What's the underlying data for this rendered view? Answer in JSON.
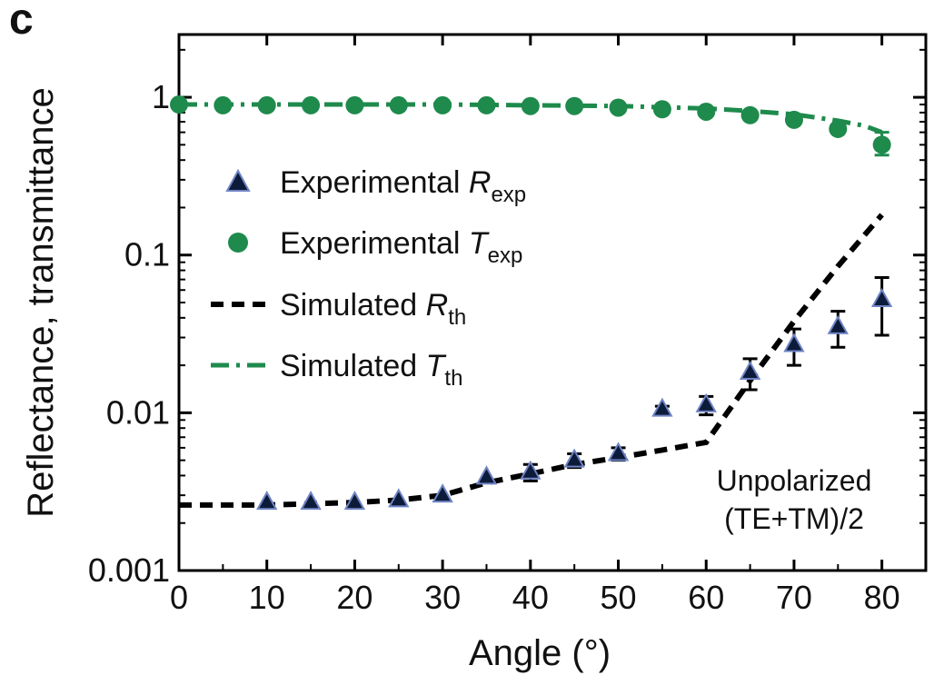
{
  "panel_label": "c",
  "colors": {
    "transmittance": "#1e8a4c",
    "transmittance_marker": "#1e8a4c",
    "reflectance_fill": "#0d1b3a",
    "reflectance_edge": "#6f84c4",
    "simulated_R": "#000000",
    "simulated_T": "#1e8a4c"
  },
  "legend": [
    {
      "label": "Experimental ",
      "italic": "R",
      "sub": "exp",
      "symbol": "triangle-icon"
    },
    {
      "label": "Experimental ",
      "italic": "T",
      "sub": "exp",
      "symbol": "circle-icon"
    },
    {
      "label": "Simulated ",
      "italic": "R",
      "sub": "th",
      "symbol": "dashed-line-icon"
    },
    {
      "label": "Simulated ",
      "italic": "T",
      "sub": "th",
      "symbol": "dash-dot-line-icon"
    }
  ],
  "annotation": [
    "Unpolarized",
    "(TE+TM)/2"
  ],
  "chart_data": {
    "type": "scatter",
    "title": "",
    "xlabel": "Angle (°)",
    "ylabel": "Reflectance, transmittance",
    "xlim": [
      0,
      85
    ],
    "ylim": [
      0.001,
      2.5
    ],
    "yscale": "log",
    "xticks": [
      0,
      10,
      20,
      30,
      40,
      50,
      60,
      70,
      80
    ],
    "xtick_labels": [
      "0",
      "10",
      "20",
      "30",
      "40",
      "50",
      "60",
      "70",
      "80"
    ],
    "yticks": [
      0.001,
      0.01,
      0.1,
      1
    ],
    "ytick_labels": [
      "0.001",
      "0.01",
      "0.1",
      "1"
    ],
    "grid": false,
    "legend_position": "left",
    "series": [
      {
        "name": "Experimental Rexp",
        "kind": "marker-triangle",
        "x": [
          10,
          15,
          20,
          25,
          30,
          35,
          40,
          45,
          50,
          55,
          60,
          65,
          70,
          75,
          80
        ],
        "y": [
          0.0027,
          0.0027,
          0.0027,
          0.0028,
          0.003,
          0.0039,
          0.0042,
          0.005,
          0.0055,
          0.0105,
          0.0112,
          0.018,
          0.027,
          0.035,
          0.052
        ],
        "err_low": [
          0,
          0,
          0,
          0,
          0,
          0,
          0.0005,
          0.0005,
          0.0005,
          0.0005,
          0.0015,
          0.004,
          0.007,
          0.009,
          0.021
        ],
        "err_high": [
          0,
          0,
          0,
          0,
          0,
          0,
          0.0005,
          0.0005,
          0.0005,
          0.0005,
          0.0015,
          0.004,
          0.007,
          0.009,
          0.02
        ]
      },
      {
        "name": "Experimental Texp",
        "kind": "marker-circle",
        "x": [
          0,
          5,
          10,
          15,
          20,
          25,
          30,
          35,
          40,
          45,
          50,
          55,
          60,
          65,
          70,
          75,
          80
        ],
        "y": [
          0.9,
          0.89,
          0.89,
          0.89,
          0.89,
          0.89,
          0.89,
          0.89,
          0.88,
          0.88,
          0.86,
          0.84,
          0.81,
          0.77,
          0.72,
          0.63,
          0.5
        ],
        "err_low": [
          0,
          0,
          0,
          0,
          0,
          0,
          0,
          0,
          0,
          0,
          0,
          0,
          0,
          0,
          0,
          0,
          0.07
        ],
        "err_high": [
          0,
          0,
          0,
          0,
          0,
          0,
          0,
          0,
          0,
          0,
          0,
          0,
          0,
          0,
          0,
          0,
          0.1
        ]
      },
      {
        "name": "Simulated Rth",
        "kind": "line-dashed",
        "x": [
          0,
          10,
          20,
          25,
          30,
          35,
          40,
          45,
          50,
          55,
          60,
          65,
          70,
          75,
          80
        ],
        "y": [
          0.0026,
          0.0026,
          0.0027,
          0.0028,
          0.003,
          0.0036,
          0.0041,
          0.0047,
          0.0052,
          0.0058,
          0.0065,
          0.016,
          0.038,
          0.085,
          0.18
        ]
      },
      {
        "name": "Simulated Tth",
        "kind": "line-dashdot",
        "x": [
          0,
          10,
          20,
          30,
          40,
          50,
          60,
          65,
          70,
          75,
          78,
          80
        ],
        "y": [
          0.9,
          0.9,
          0.9,
          0.9,
          0.89,
          0.88,
          0.85,
          0.82,
          0.78,
          0.71,
          0.66,
          0.6
        ]
      }
    ]
  }
}
